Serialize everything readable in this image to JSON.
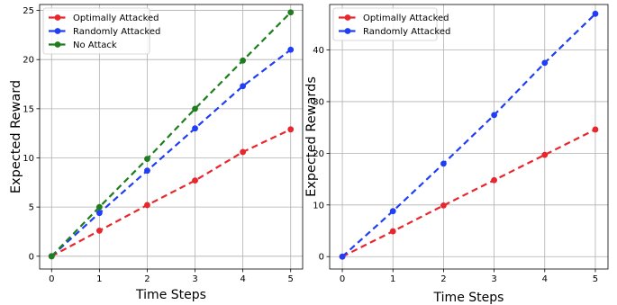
{
  "chart_data": [
    {
      "type": "line",
      "xlabel": "Time Steps",
      "ylabel": "Expected Reward",
      "x": [
        0,
        1,
        2,
        3,
        4,
        5
      ],
      "xlim": [
        -0.25,
        5.25
      ],
      "ylim": [
        -1.3,
        25.6
      ],
      "xticks": [
        "0",
        "1",
        "2",
        "3",
        "4",
        "5"
      ],
      "yticks": [
        "0",
        "5",
        "10",
        "15",
        "20",
        "25"
      ],
      "grid": true,
      "legend_position": "upper-left",
      "series": [
        {
          "name": "Optimally Attacked",
          "color": "#e8262e",
          "values": [
            0,
            2.6,
            5.2,
            7.7,
            10.6,
            12.9
          ]
        },
        {
          "name": "Randomly Attacked",
          "color": "#1f3ef5",
          "values": [
            0,
            4.4,
            8.7,
            13.0,
            17.3,
            21.0
          ]
        },
        {
          "name": "No Attack",
          "color": "#1e7d1e",
          "values": [
            0,
            5.0,
            9.9,
            15.0,
            19.9,
            24.8
          ]
        }
      ]
    },
    {
      "type": "line",
      "xlabel": "Time Steps",
      "ylabel": "Expected Rewards",
      "x": [
        0,
        1,
        2,
        3,
        4,
        5
      ],
      "xlim": [
        -0.25,
        5.25
      ],
      "ylim": [
        -2.4,
        48.8
      ],
      "xticks": [
        "0",
        "1",
        "2",
        "3",
        "4",
        "5"
      ],
      "yticks": [
        "0",
        "10",
        "20",
        "30",
        "40"
      ],
      "grid": true,
      "legend_position": "upper-left",
      "series": [
        {
          "name": "Optimally Attacked",
          "color": "#e8262e",
          "values": [
            0,
            4.9,
            9.9,
            14.8,
            19.7,
            24.6
          ]
        },
        {
          "name": "Randomly Attacked",
          "color": "#1f3ef5",
          "values": [
            0,
            8.8,
            18.0,
            27.4,
            37.5,
            47.0
          ]
        }
      ]
    }
  ]
}
